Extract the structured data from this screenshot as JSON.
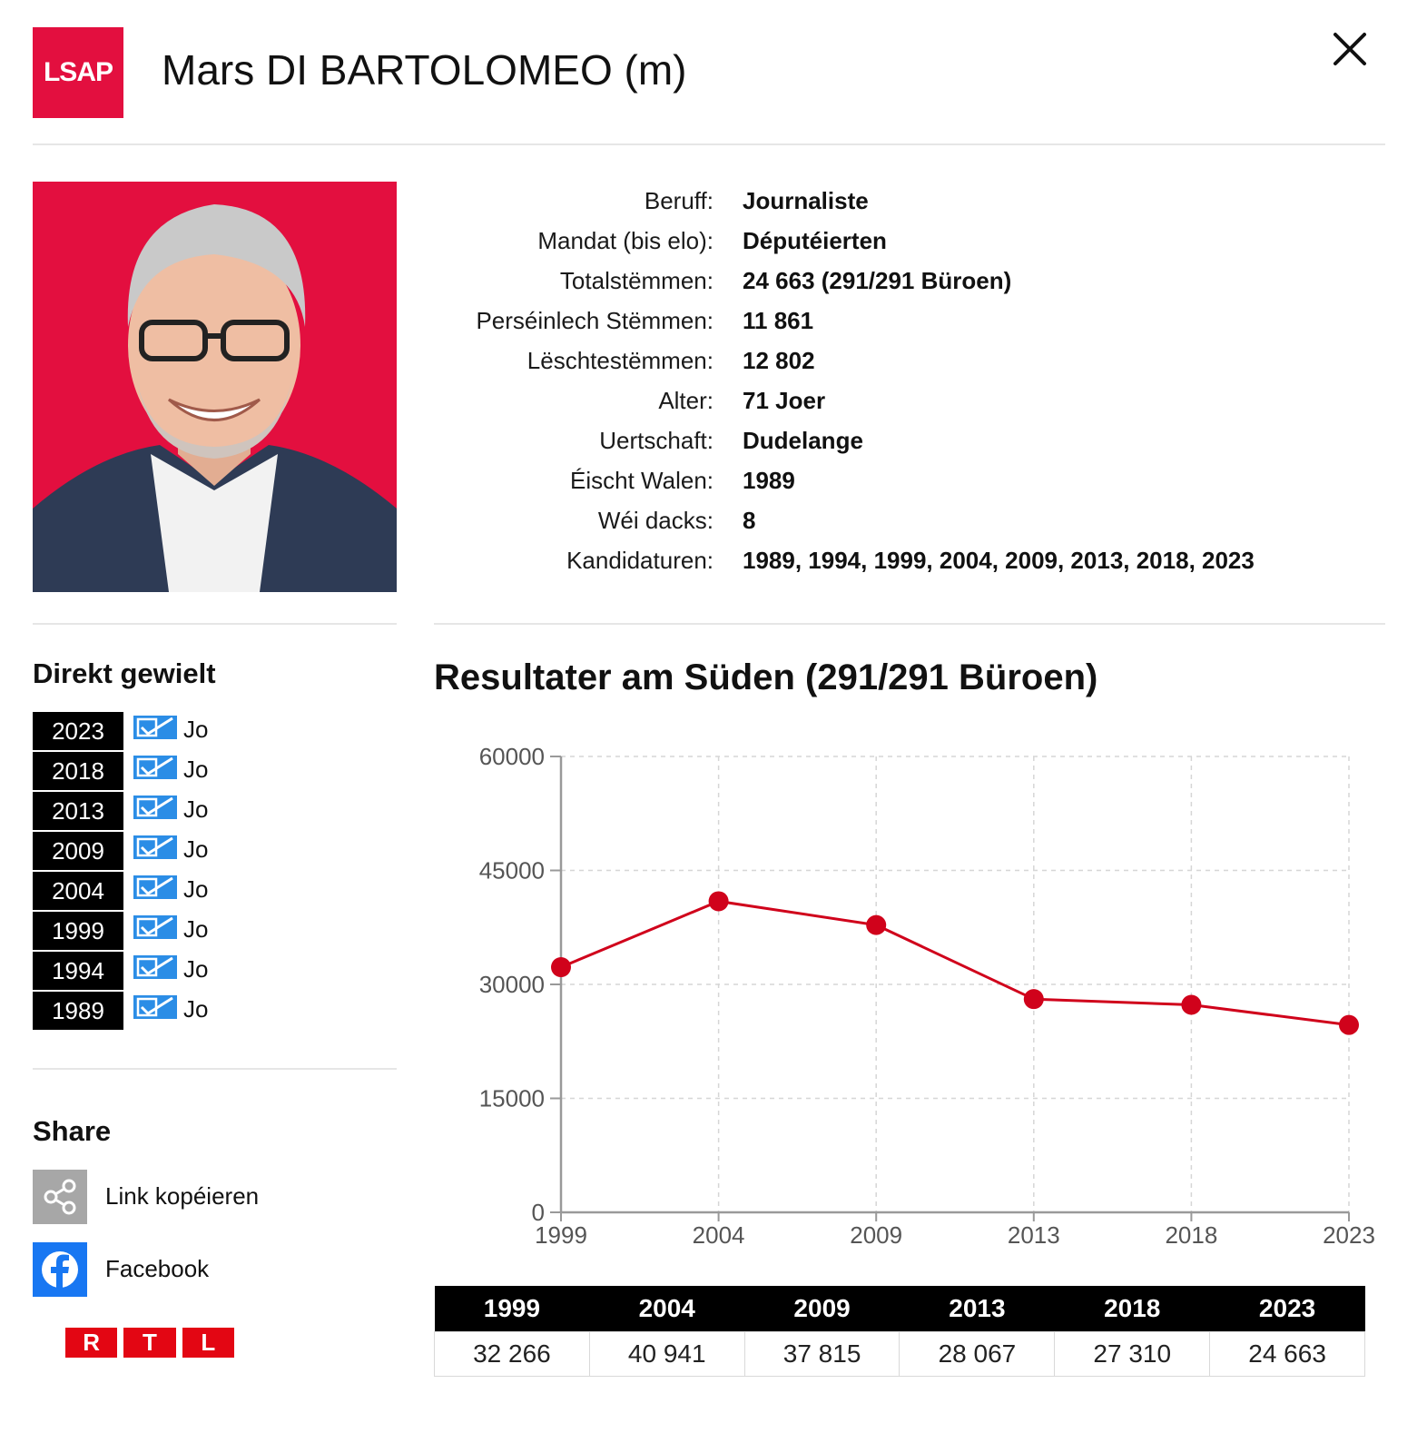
{
  "header": {
    "party_logo_text": "LSAP",
    "candidate_name": "Mars DI BARTOLOMEO (m)",
    "close_icon": "close-icon"
  },
  "colors": {
    "party_red": "#e30f3f",
    "chart_line": "#d0021b",
    "check_blue": "#2b8de6"
  },
  "info": {
    "rows": [
      {
        "label": "Beruff:",
        "value": "Journaliste"
      },
      {
        "label": "Mandat (bis elo):",
        "value": "Députéierten"
      },
      {
        "label": "Totalstëmmen:",
        "value": "24 663 (291/291 Büroen)"
      },
      {
        "label": "Perséinlech Stëmmen:",
        "value": "11 861"
      },
      {
        "label": "Lëschtestëmmen:",
        "value": "12 802"
      },
      {
        "label": "Alter:",
        "value": "71 Joer"
      },
      {
        "label": "Uertschaft:",
        "value": "Dudelange"
      },
      {
        "label": "Éischt Walen:",
        "value": "1989"
      },
      {
        "label": "Wéi dacks:",
        "value": "8"
      },
      {
        "label": "Kandidaturen:",
        "value": "1989, 1994, 1999, 2004, 2009, 2013, 2018, 2023"
      }
    ]
  },
  "elected": {
    "title": "Direkt gewielt",
    "rows": [
      {
        "year": "2023",
        "value": "Jo"
      },
      {
        "year": "2018",
        "value": "Jo"
      },
      {
        "year": "2013",
        "value": "Jo"
      },
      {
        "year": "2009",
        "value": "Jo"
      },
      {
        "year": "2004",
        "value": "Jo"
      },
      {
        "year": "1999",
        "value": "Jo"
      },
      {
        "year": "1994",
        "value": "Jo"
      },
      {
        "year": "1989",
        "value": "Jo"
      }
    ]
  },
  "share": {
    "title": "Share",
    "items": [
      {
        "label": "Link kopéieren",
        "icon": "share-link-icon"
      },
      {
        "label": "Facebook",
        "icon": "facebook-icon"
      }
    ]
  },
  "footer": {
    "brand_letters": [
      "R",
      "T",
      "L"
    ]
  },
  "chart_data": {
    "type": "line",
    "title": "Resultater am Süden (291/291 Büroen)",
    "x": [
      "1999",
      "2004",
      "2009",
      "2013",
      "2018",
      "2023"
    ],
    "series": [
      {
        "values": [
          32266,
          40941,
          37815,
          28067,
          27310,
          24663
        ]
      }
    ],
    "ylim": [
      0,
      60000
    ],
    "yticks": [
      "0",
      "15000",
      "30000",
      "45000",
      "60000"
    ],
    "grid": true,
    "legend": "none"
  },
  "results_table": {
    "headers": [
      "1999",
      "2004",
      "2009",
      "2013",
      "2018",
      "2023"
    ],
    "values": [
      "32 266",
      "40 941",
      "37 815",
      "28 067",
      "27 310",
      "24 663"
    ]
  }
}
